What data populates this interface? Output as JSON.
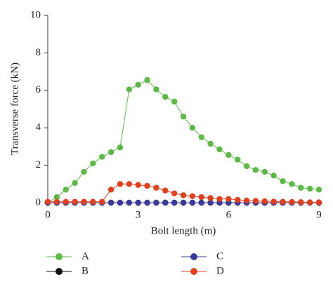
{
  "chart_data": {
    "type": "line",
    "x_label": "Bolt length (m)",
    "y_label": "Transverse force (kN)",
    "x": [
      0,
      0.3,
      0.6,
      0.9,
      1.2,
      1.5,
      1.8,
      2.1,
      2.4,
      2.7,
      3.0,
      3.3,
      3.6,
      3.9,
      4.2,
      4.5,
      4.8,
      5.1,
      5.4,
      5.7,
      6.0,
      6.3,
      6.6,
      6.9,
      7.2,
      7.5,
      7.8,
      8.1,
      8.4,
      8.7,
      9.0
    ],
    "series": [
      {
        "name": "A",
        "color": "#5cb946",
        "values": [
          0,
          0.3,
          0.7,
          1.05,
          1.65,
          2.1,
          2.45,
          2.7,
          2.95,
          6.05,
          6.3,
          6.55,
          6.05,
          5.65,
          5.4,
          4.6,
          4.0,
          3.5,
          3.15,
          2.85,
          2.55,
          2.3,
          1.95,
          1.75,
          1.65,
          1.45,
          1.15,
          1.0,
          0.8,
          0.75,
          0.7
        ]
      },
      {
        "name": "B",
        "color": "#111111",
        "values": [
          0,
          0,
          0,
          0,
          0,
          0,
          0,
          0,
          0,
          0,
          0,
          0,
          0,
          0,
          0,
          0,
          0,
          0,
          0,
          0,
          0,
          0,
          0,
          0,
          0,
          0,
          0,
          0,
          0,
          0,
          0
        ]
      },
      {
        "name": "C",
        "color": "#3a3a9a",
        "values": [
          0,
          0,
          0,
          0,
          0,
          0,
          0,
          0,
          0,
          0,
          0,
          0,
          0,
          0,
          0,
          0,
          0,
          0,
          0,
          0,
          0,
          0,
          0,
          0,
          0,
          0,
          0,
          0,
          0,
          0,
          0
        ]
      },
      {
        "name": "D",
        "color": "#e0401e",
        "values": [
          0.05,
          0.05,
          0.05,
          0.05,
          0.05,
          0.05,
          0.05,
          0.7,
          1.0,
          1.0,
          0.95,
          0.9,
          0.8,
          0.65,
          0.5,
          0.4,
          0.35,
          0.3,
          0.25,
          0.2,
          0.2,
          0.15,
          0.12,
          0.1,
          0.08,
          0.06,
          0.05,
          0.04,
          0.03,
          0.02,
          0.02
        ]
      }
    ],
    "xlim": [
      0,
      9
    ],
    "ylim": [
      0,
      10
    ],
    "xticks": [
      0,
      3,
      6,
      9
    ],
    "yticks": [
      0,
      2,
      4,
      6,
      8,
      10
    ]
  }
}
